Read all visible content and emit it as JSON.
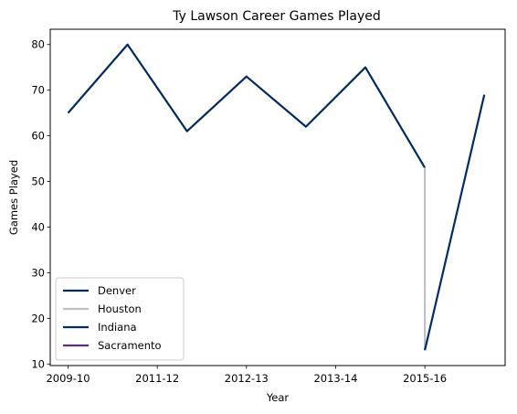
{
  "chart_data": {
    "type": "line",
    "title": "Ty Lawson Career Games Played",
    "xlabel": "Year",
    "ylabel": "Games Played",
    "xlim": [
      -0.3,
      7.35
    ],
    "ylim": [
      9.65,
      83.35
    ],
    "x_ticks": [
      {
        "pos": 0,
        "label": "2009-10"
      },
      {
        "pos": 1.5,
        "label": "2011-12"
      },
      {
        "pos": 3,
        "label": "2012-13"
      },
      {
        "pos": 4.5,
        "label": "2013-14"
      },
      {
        "pos": 6,
        "label": "2015-16"
      }
    ],
    "y_ticks": [
      10,
      20,
      30,
      40,
      50,
      60,
      70,
      80
    ],
    "series": [
      {
        "name": "Denver",
        "color": "#002B5C",
        "points": [
          [
            0,
            65
          ],
          [
            1,
            80
          ],
          [
            2,
            61
          ],
          [
            3,
            73
          ],
          [
            4,
            62
          ],
          [
            5,
            75
          ],
          [
            6,
            53
          ]
        ]
      },
      {
        "name": "Houston",
        "color": "#C0C0C0",
        "points": [
          [
            6,
            53
          ],
          [
            6,
            13
          ]
        ]
      },
      {
        "name": "Indiana",
        "color": "#002D62",
        "points": [
          [
            6,
            13
          ],
          [
            7,
            69
          ]
        ]
      },
      {
        "name": "Sacramento",
        "color": "#5A2D81",
        "points": []
      }
    ],
    "legend_position": "lower-left"
  }
}
